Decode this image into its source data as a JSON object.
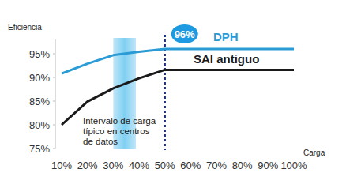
{
  "chart_data": {
    "type": "line",
    "y_label": "Eficiencia",
    "x_label": "Carga",
    "categories": [
      "10%",
      "20%",
      "30%",
      "40%",
      "50%",
      "60%",
      "70%",
      "80%",
      "90%",
      "100%"
    ],
    "series": [
      {
        "name": "DPH",
        "color": "#2b9bd6",
        "values": [
          90.8,
          92.9,
          94.7,
          95.4,
          96,
          96,
          96,
          96,
          96,
          96
        ]
      },
      {
        "name": "SAI antiguo",
        "color": "#1a1a1a",
        "values": [
          80,
          84.9,
          87.7,
          89.8,
          91.6,
          91.6,
          91.6,
          91.6,
          91.6,
          91.6
        ]
      }
    ],
    "ylim": [
      75,
      98
    ],
    "yticks": [
      {
        "value": 75,
        "label": "75%"
      },
      {
        "value": 80,
        "label": "80%"
      },
      {
        "value": 85,
        "label": "85%"
      },
      {
        "value": 90,
        "label": "90%"
      },
      {
        "value": 95,
        "label": "95%"
      }
    ],
    "grid": false,
    "band": {
      "from": "30%",
      "to": "40%",
      "label": [
        "Intervalo de carga",
        "típico en centros",
        "de datos"
      ]
    },
    "marker_line": {
      "at": "50%",
      "label": "96%"
    }
  }
}
